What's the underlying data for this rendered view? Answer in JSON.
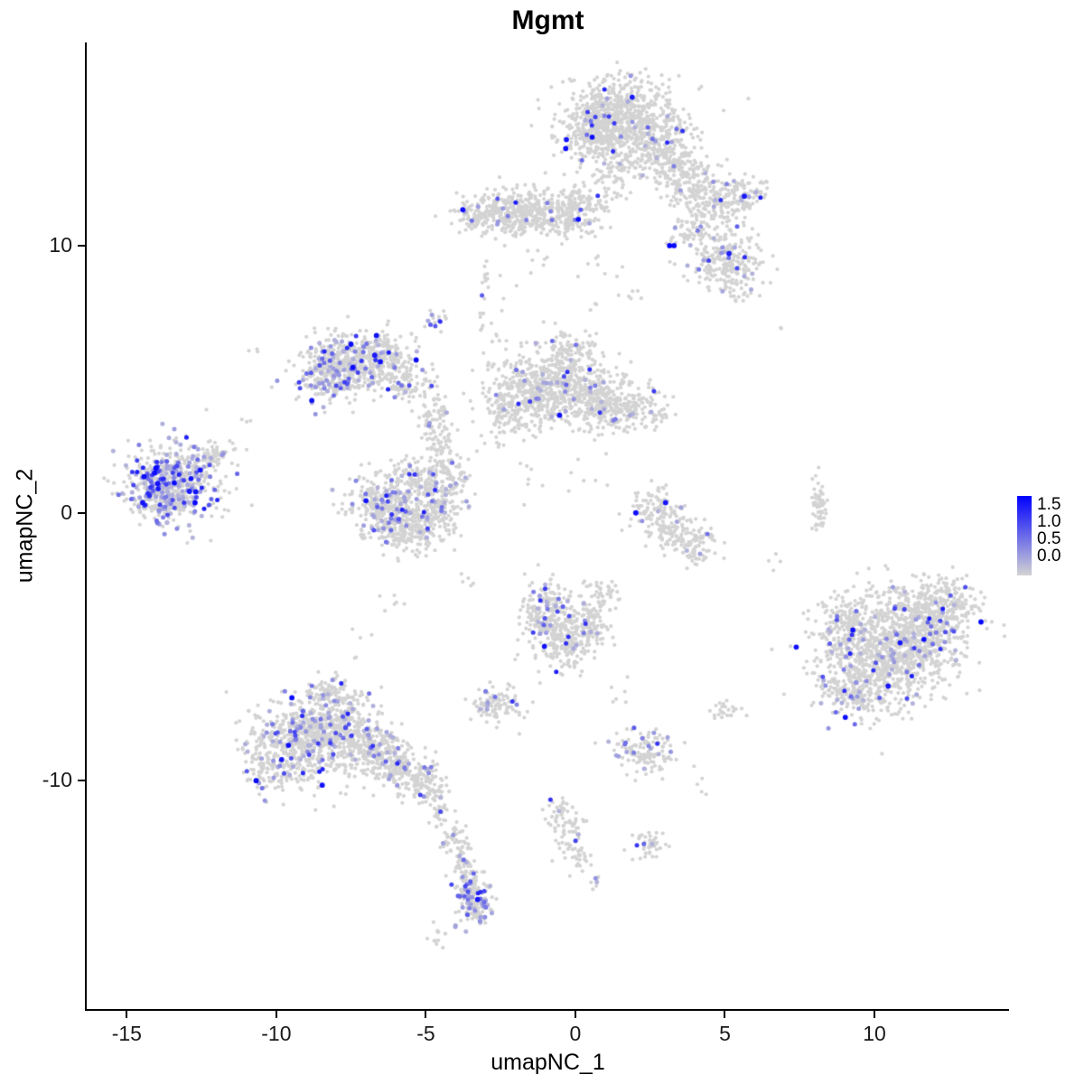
{
  "title": "Mgmt",
  "axes": {
    "x": {
      "label": "umapNC_1",
      "ticks": [
        -15,
        -10,
        -5,
        0,
        5,
        10
      ]
    },
    "y": {
      "label": "umapNC_2",
      "ticks": [
        -10,
        0,
        10
      ]
    }
  },
  "legend": {
    "labels": [
      "1.5",
      "1.0",
      "0.5",
      "0.0"
    ],
    "color_high": "#0000ff",
    "color_low": "#d3d3d3",
    "vmax": 1.6
  },
  "chart_data": {
    "type": "scatter",
    "title": "Mgmt",
    "xlabel": "umapNC_1",
    "ylabel": "umapNC_2",
    "xlim": [
      -16.34,
      14.5
    ],
    "ylim": [
      -18.55,
      17.6
    ],
    "grid": false,
    "legend_position": "right",
    "point_color_low": "#d3d3d3",
    "point_color_high": "#0000ff",
    "value_max": 1.6,
    "seed": 42,
    "clusters": [
      {
        "cx": 1.5,
        "cy": 14.7,
        "sx": 1.0,
        "sy": 0.75,
        "n": 800,
        "f": 0.035
      },
      {
        "cx": 0.6,
        "cy": 14.2,
        "sx": 0.4,
        "sy": 0.5,
        "n": 120,
        "f": 0.03
      },
      {
        "cx": 2.9,
        "cy": 13.3,
        "sx": 0.7,
        "sy": 0.6,
        "n": 260,
        "f": 0.02
      },
      {
        "cx": 3.9,
        "cy": 12.3,
        "sx": 0.5,
        "sy": 0.45,
        "n": 130,
        "f": 0.02
      },
      {
        "cx": 4.7,
        "cy": 11.6,
        "sx": 0.45,
        "sy": 0.4,
        "n": 110,
        "f": 0.03
      },
      {
        "cx": 5.6,
        "cy": 11.9,
        "sx": 0.4,
        "sy": 0.35,
        "n": 80,
        "f": 0.06
      },
      {
        "cx": 1.2,
        "cy": 12.9,
        "sx": 0.3,
        "sy": 0.5,
        "n": 60,
        "f": 0.02
      },
      {
        "cx": -2.5,
        "cy": 11.3,
        "sx": 0.7,
        "sy": 0.4,
        "n": 240,
        "f": 0.05
      },
      {
        "cx": -1.2,
        "cy": 11.2,
        "sx": 0.7,
        "sy": 0.45,
        "n": 240,
        "f": 0.02
      },
      {
        "cx": 0.2,
        "cy": 11.4,
        "sx": 0.55,
        "sy": 0.5,
        "n": 150,
        "f": 0.02
      },
      {
        "cx": -3.4,
        "cy": 11.0,
        "sx": 0.25,
        "sy": 0.25,
        "n": 40,
        "f": 0.05
      },
      {
        "cx": 4.9,
        "cy": 9.6,
        "sx": 0.65,
        "sy": 0.55,
        "n": 230,
        "f": 0.07
      },
      {
        "cx": 5.4,
        "cy": 8.5,
        "sx": 0.3,
        "sy": 0.3,
        "n": 40,
        "f": 0.03
      },
      {
        "cx": 3.8,
        "cy": 10.5,
        "sx": 0.4,
        "sy": 0.35,
        "n": 50,
        "f": 0.04
      },
      {
        "cx": -7.5,
        "cy": 5.6,
        "sx": 0.8,
        "sy": 0.6,
        "n": 420,
        "f": 0.1
      },
      {
        "cx": -8.3,
        "cy": 5.1,
        "sx": 0.45,
        "sy": 0.45,
        "n": 150,
        "f": 0.22
      },
      {
        "cx": -6.4,
        "cy": 5.9,
        "sx": 0.5,
        "sy": 0.45,
        "n": 150,
        "f": 0.06
      },
      {
        "cx": -5.6,
        "cy": 4.8,
        "sx": 0.4,
        "sy": 0.4,
        "n": 90,
        "f": 0.08
      },
      {
        "cx": -4.7,
        "cy": 3.4,
        "sx": 0.3,
        "sy": 0.6,
        "n": 80,
        "f": 0.06
      },
      {
        "cx": -4.5,
        "cy": 2.2,
        "sx": 0.25,
        "sy": 0.4,
        "n": 40,
        "f": 0.05
      },
      {
        "cx": -4.6,
        "cy": 7.3,
        "sx": 0.25,
        "sy": 0.3,
        "n": 18,
        "f": 0.25
      },
      {
        "cx": -0.9,
        "cy": 4.7,
        "sx": 1.0,
        "sy": 0.7,
        "n": 650,
        "f": 0.03
      },
      {
        "cx": 0.8,
        "cy": 4.2,
        "sx": 0.6,
        "sy": 0.5,
        "n": 200,
        "f": 0.02
      },
      {
        "cx": 2.0,
        "cy": 3.9,
        "sx": 0.6,
        "sy": 0.4,
        "n": 150,
        "f": 0.03
      },
      {
        "cx": -0.2,
        "cy": 6.0,
        "sx": 0.5,
        "sy": 0.35,
        "n": 100,
        "f": 0.03
      },
      {
        "cx": -2.2,
        "cy": 3.8,
        "sx": 0.4,
        "sy": 0.4,
        "n": 80,
        "f": 0.04
      },
      {
        "cx": -13.5,
        "cy": 1.1,
        "sx": 0.8,
        "sy": 0.7,
        "n": 520,
        "f": 0.32
      },
      {
        "cx": -12.2,
        "cy": 2.2,
        "sx": 0.4,
        "sy": 0.3,
        "n": 60,
        "f": 0.08
      },
      {
        "cx": -14.2,
        "cy": 0.6,
        "sx": 0.35,
        "sy": 0.4,
        "n": 80,
        "f": 0.25
      },
      {
        "cx": -6.5,
        "cy": 0.4,
        "sx": 0.55,
        "sy": 0.6,
        "n": 260,
        "f": 0.17
      },
      {
        "cx": -5.6,
        "cy": -0.5,
        "sx": 0.6,
        "sy": 0.45,
        "n": 260,
        "f": 0.1
      },
      {
        "cx": -4.7,
        "cy": 0.3,
        "sx": 0.45,
        "sy": 0.55,
        "n": 180,
        "f": 0.08
      },
      {
        "cx": -5.4,
        "cy": 1.4,
        "sx": 0.4,
        "sy": 0.35,
        "n": 90,
        "f": 0.08
      },
      {
        "cx": -4.1,
        "cy": 1.3,
        "sx": 0.3,
        "sy": 0.4,
        "n": 60,
        "f": 0.1
      },
      {
        "cx": 2.6,
        "cy": 0.2,
        "sx": 0.4,
        "sy": 0.4,
        "n": 90,
        "f": 0.04
      },
      {
        "cx": 3.3,
        "cy": -0.7,
        "sx": 0.5,
        "sy": 0.4,
        "n": 110,
        "f": 0.03
      },
      {
        "cx": 4.0,
        "cy": -1.3,
        "sx": 0.35,
        "sy": 0.3,
        "n": 60,
        "f": 0.03
      },
      {
        "cx": 8.15,
        "cy": 0.2,
        "sx": 0.12,
        "sy": 0.5,
        "n": 55,
        "f": 0.02
      },
      {
        "cx": 10.2,
        "cy": -5.3,
        "sx": 1.1,
        "sy": 1.0,
        "n": 900,
        "f": 0.07
      },
      {
        "cx": 11.5,
        "cy": -4.2,
        "sx": 0.9,
        "sy": 0.8,
        "n": 500,
        "f": 0.06
      },
      {
        "cx": 12.5,
        "cy": -3.3,
        "sx": 0.5,
        "sy": 0.5,
        "n": 140,
        "f": 0.05
      },
      {
        "cx": 9.0,
        "cy": -4.0,
        "sx": 0.4,
        "sy": 0.5,
        "n": 90,
        "f": 0.06
      },
      {
        "cx": 9.3,
        "cy": -6.8,
        "sx": 0.5,
        "sy": 0.4,
        "n": 110,
        "f": 0.05
      },
      {
        "cx": -0.9,
        "cy": -3.7,
        "sx": 0.5,
        "sy": 0.6,
        "n": 220,
        "f": 0.08
      },
      {
        "cx": -0.3,
        "cy": -4.9,
        "sx": 0.45,
        "sy": 0.5,
        "n": 160,
        "f": 0.06
      },
      {
        "cx": 0.5,
        "cy": -4.2,
        "sx": 0.4,
        "sy": 0.4,
        "n": 90,
        "f": 0.05
      },
      {
        "cx": 0.9,
        "cy": -3.2,
        "sx": 0.3,
        "sy": 0.3,
        "n": 50,
        "f": 0.04
      },
      {
        "cx": -2.7,
        "cy": -7.2,
        "sx": 0.45,
        "sy": 0.35,
        "n": 100,
        "f": 0.09
      },
      {
        "cx": -9.3,
        "cy": -8.7,
        "sx": 0.8,
        "sy": 0.8,
        "n": 480,
        "f": 0.14
      },
      {
        "cx": -8.0,
        "cy": -7.9,
        "sx": 0.7,
        "sy": 0.6,
        "n": 350,
        "f": 0.12
      },
      {
        "cx": -6.8,
        "cy": -8.9,
        "sx": 0.6,
        "sy": 0.5,
        "n": 230,
        "f": 0.08
      },
      {
        "cx": -5.8,
        "cy": -9.5,
        "sx": 0.45,
        "sy": 0.4,
        "n": 150,
        "f": 0.06
      },
      {
        "cx": -5.0,
        "cy": -10.1,
        "sx": 0.35,
        "sy": 0.35,
        "n": 90,
        "f": 0.05
      },
      {
        "cx": -8.2,
        "cy": -6.7,
        "sx": 0.4,
        "sy": 0.35,
        "n": 80,
        "f": 0.1
      },
      {
        "cx": -10.3,
        "cy": -9.5,
        "sx": 0.35,
        "sy": 0.4,
        "n": 70,
        "f": 0.1
      },
      {
        "cx": -4.5,
        "cy": -11.2,
        "sx": 0.2,
        "sy": 0.4,
        "n": 35,
        "f": 0.04
      },
      {
        "cx": -4.0,
        "cy": -12.2,
        "sx": 0.2,
        "sy": 0.45,
        "n": 45,
        "f": 0.05
      },
      {
        "cx": -3.6,
        "cy": -13.3,
        "sx": 0.22,
        "sy": 0.5,
        "n": 55,
        "f": 0.08
      },
      {
        "cx": -3.4,
        "cy": -14.5,
        "sx": 0.3,
        "sy": 0.5,
        "n": 150,
        "f": 0.28
      },
      {
        "cx": -4.6,
        "cy": -15.7,
        "sx": 0.25,
        "sy": 0.25,
        "n": 12,
        "f": 0.0
      },
      {
        "cx": 2.3,
        "cy": -8.9,
        "sx": 0.5,
        "sy": 0.4,
        "n": 130,
        "f": 0.12
      },
      {
        "cx": -0.5,
        "cy": -11.2,
        "sx": 0.2,
        "sy": 0.35,
        "n": 35,
        "f": 0.04
      },
      {
        "cx": -0.2,
        "cy": -12.0,
        "sx": 0.25,
        "sy": 0.4,
        "n": 45,
        "f": 0.06
      },
      {
        "cx": 0.1,
        "cy": -12.8,
        "sx": 0.2,
        "sy": 0.3,
        "n": 25,
        "f": 0.05
      },
      {
        "cx": 2.4,
        "cy": -12.4,
        "sx": 0.3,
        "sy": 0.3,
        "n": 45,
        "f": 0.12
      },
      {
        "cx": 0.6,
        "cy": -13.9,
        "sx": 0.15,
        "sy": 0.15,
        "n": 7,
        "f": 0.3
      },
      {
        "cx": 5.0,
        "cy": -7.4,
        "sx": 0.3,
        "sy": 0.2,
        "n": 25,
        "f": 0.05
      },
      {
        "cx": -10.6,
        "cy": 6.0,
        "sx": 0.15,
        "sy": 0.15,
        "n": 3,
        "f": 0
      },
      {
        "cx": 6.8,
        "cy": 6.9,
        "sx": 0.1,
        "sy": 0.1,
        "n": 2,
        "f": 0
      },
      {
        "cx": -2.7,
        "cy": 8.8,
        "sx": 0.3,
        "sy": 0.25,
        "n": 6,
        "f": 0
      },
      {
        "cx": -1.3,
        "cy": 9.6,
        "sx": 0.3,
        "sy": 0.3,
        "n": 6,
        "f": 0
      },
      {
        "cx": 0.9,
        "cy": 9.2,
        "sx": 0.4,
        "sy": 0.4,
        "n": 8,
        "f": 0
      },
      {
        "cx": 2.1,
        "cy": 8.0,
        "sx": 0.3,
        "sy": 0.5,
        "n": 6,
        "f": 0
      },
      {
        "cx": 0.6,
        "cy": 7.7,
        "sx": 0.15,
        "sy": 0.15,
        "n": 3,
        "f": 0
      },
      {
        "cx": -3.0,
        "cy": 7.6,
        "sx": 0.2,
        "sy": 0.8,
        "n": 20,
        "f": 0.05
      },
      {
        "cx": -3.0,
        "cy": 2.7,
        "sx": 0.3,
        "sy": 0.3,
        "n": 8,
        "f": 0.05
      },
      {
        "cx": -1.8,
        "cy": 1.2,
        "sx": 0.4,
        "sy": 0.4,
        "n": 7,
        "f": 0
      },
      {
        "cx": 0.2,
        "cy": 2.0,
        "sx": 0.4,
        "sy": 0.5,
        "n": 6,
        "f": 0
      },
      {
        "cx": -3.7,
        "cy": -2.6,
        "sx": 0.3,
        "sy": 0.3,
        "n": 5,
        "f": 0
      },
      {
        "cx": -6.3,
        "cy": -3.6,
        "sx": 0.3,
        "sy": 0.3,
        "n": 6,
        "f": 0
      },
      {
        "cx": -7.3,
        "cy": -4.8,
        "sx": 0.3,
        "sy": 0.3,
        "n": 5,
        "f": 0
      },
      {
        "cx": 1.5,
        "cy": -6.7,
        "sx": 0.3,
        "sy": 0.3,
        "n": 6,
        "f": 0
      },
      {
        "cx": 4.3,
        "cy": -9.9,
        "sx": 0.25,
        "sy": 0.25,
        "n": 5,
        "f": 0
      },
      {
        "cx": 6.6,
        "cy": -1.8,
        "sx": 0.2,
        "sy": 0.3,
        "n": 4,
        "f": 0
      },
      {
        "cx": -10.9,
        "cy": 3.4,
        "sx": 0.2,
        "sy": 0.2,
        "n": 3,
        "f": 0
      }
    ],
    "highlight_points": [
      {
        "x": 3.15,
        "y": 10.0,
        "value": 1.6
      },
      {
        "x": 3.3,
        "y": 10.0,
        "value": 1.5
      },
      {
        "x": 5.65,
        "y": 11.85,
        "value": 1.4
      }
    ]
  }
}
